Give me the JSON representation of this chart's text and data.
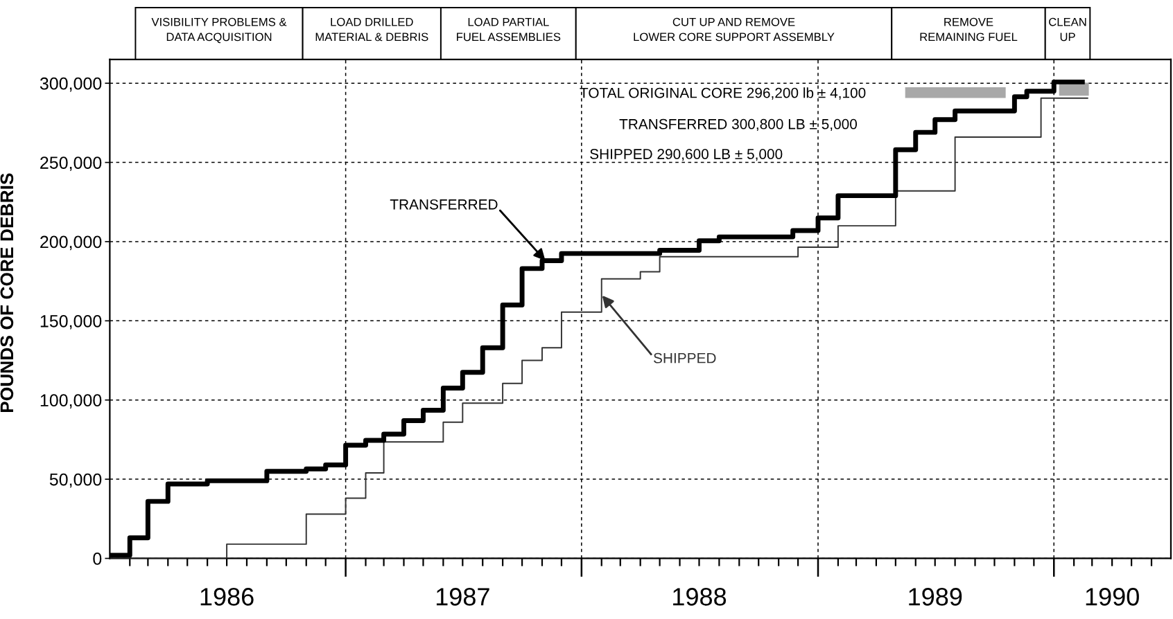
{
  "chart_data": {
    "type": "step",
    "ylabel": "POUNDS OF CORE DEBRIS",
    "series": [
      {
        "name": "TRANSFERRED",
        "color": "#000000",
        "x": [
          "1986-01",
          "1986-02",
          "1986-03",
          "1986-04",
          "1986-06",
          "1986-09",
          "1986-11",
          "1986-12",
          "1987-01",
          "1987-02",
          "1987-03",
          "1987-04",
          "1987-05",
          "1987-06",
          "1987-07",
          "1987-08",
          "1987-09",
          "1987-10",
          "1987-11",
          "1987-12",
          "1988-05",
          "1988-07",
          "1988-08",
          "1988-11-23",
          "1989-01",
          "1989-02",
          "1989-05",
          "1989-06",
          "1989-07",
          "1989-08",
          "1989-11",
          "1989-11-20",
          "1990-01",
          "1990-02-14"
        ],
        "values": [
          2000,
          13000,
          36000,
          47000,
          49000,
          55000,
          56500,
          59000,
          71500,
          74500,
          78500,
          87000,
          93500,
          107500,
          117500,
          133000,
          160000,
          183000,
          188000,
          192500,
          194500,
          200500,
          203000,
          207000,
          215000,
          229000,
          258000,
          269000,
          277000,
          282500,
          291500,
          295000,
          300800,
          300800
        ]
      },
      {
        "name": "SHIPPED",
        "color": "#333333",
        "x": [
          "1986-01",
          "1986-07",
          "1986-11",
          "1987-01",
          "1987-02",
          "1987-03",
          "1987-06",
          "1987-07",
          "1987-09",
          "1987-10",
          "1987-11",
          "1987-12",
          "1988-02",
          "1988-04",
          "1988-05",
          "1988-12",
          "1989-02",
          "1989-05",
          "1989-08",
          "1989-12-12",
          "1990-02-22"
        ],
        "values": [
          0,
          9000,
          28000,
          38000,
          54000,
          73500,
          86000,
          98000,
          110500,
          125000,
          133000,
          155500,
          176500,
          181000,
          190500,
          196500,
          210000,
          232000,
          266000,
          290600,
          290600
        ]
      },
      {
        "type": "bar",
        "color": "#a8a8a8",
        "x": [
          "1990-02-01"
        ],
        "base": [
          292100
        ],
        "values": [
          8200
        ]
      }
    ],
    "annotations": [
      "VISIBILITY PROBLEMS &\nDATA ACQUISITION",
      "LOAD DRILLED\nMATERIAL & DEBRIS",
      "LOAD PARTIAL\nFUEL ASSEMBLIES",
      "CUT UP AND REMOVE\nLOWER CORE SUPPORT ASSEMBLY",
      "REMOVE\nREMAINING FUEL",
      "CLEAN\nUP",
      "TOTAL ORIGINAL CORE 296,200 lb ± 4,100",
      "TRANSFERRED 300,800 LB ± 5,000",
      "SHIPPED 290,600 LB ± 5,000"
    ],
    "ref_lines": [
      {
        "axis": "x",
        "value": "1987-01",
        "line_style": "dashed",
        "color": "#000000"
      },
      {
        "axis": "x",
        "value": "1988-01",
        "line_style": "dashed",
        "color": "#000000"
      },
      {
        "axis": "x",
        "value": "1989-01",
        "line_style": "dashed",
        "color": "#000000"
      },
      {
        "axis": "x",
        "value": "1990-01",
        "line_style": "dashed",
        "color": "#000000"
      }
    ],
    "xlim": [
      "1986-01",
      "1990-07"
    ],
    "xticks": [
      {
        "value": "1986-02",
        "label": null
      },
      {
        "value": "1986-03",
        "label": null
      },
      {
        "value": "1986-04",
        "label": null
      },
      {
        "value": "1986-05",
        "label": null
      },
      {
        "value": "1986-06",
        "label": null
      },
      {
        "value": "1986-07",
        "label": "1986"
      },
      {
        "value": "1986-08",
        "label": null
      },
      {
        "value": "1986-09",
        "label": null
      },
      {
        "value": "1986-10",
        "label": null
      },
      {
        "value": "1986-11",
        "label": null
      },
      {
        "value": "1986-12",
        "label": null
      },
      {
        "value": "1987-01",
        "label": null
      },
      {
        "value": "1987-02",
        "label": null
      },
      {
        "value": "1987-03",
        "label": null
      },
      {
        "value": "1987-04",
        "label": null
      },
      {
        "value": "1987-05",
        "label": null
      },
      {
        "value": "1987-06",
        "label": null
      },
      {
        "value": "1987-07",
        "label": "1987"
      },
      {
        "value": "1987-08",
        "label": null
      },
      {
        "value": "1987-09",
        "label": null
      },
      {
        "value": "1987-10",
        "label": null
      },
      {
        "value": "1987-11",
        "label": null
      },
      {
        "value": "1987-12",
        "label": null
      },
      {
        "value": "1988-01",
        "label": null
      },
      {
        "value": "1988-02",
        "label": null
      },
      {
        "value": "1988-03",
        "label": null
      },
      {
        "value": "1988-04",
        "label": null
      },
      {
        "value": "1988-05",
        "label": null
      },
      {
        "value": "1988-06",
        "label": null
      },
      {
        "value": "1988-07",
        "label": "1988"
      },
      {
        "value": "1988-08",
        "label": null
      },
      {
        "value": "1988-09",
        "label": null
      },
      {
        "value": "1988-10",
        "label": null
      },
      {
        "value": "1988-11",
        "label": null
      },
      {
        "value": "1988-12",
        "label": null
      },
      {
        "value": "1989-01",
        "label": null
      },
      {
        "value": "1989-02",
        "label": null
      },
      {
        "value": "1989-03",
        "label": null
      },
      {
        "value": "1989-04",
        "label": null
      },
      {
        "value": "1989-05",
        "label": null
      },
      {
        "value": "1989-06",
        "label": null
      },
      {
        "value": "1989-07",
        "label": "1989"
      },
      {
        "value": "1989-08",
        "label": null
      },
      {
        "value": "1989-09",
        "label": null
      },
      {
        "value": "1989-10",
        "label": null
      },
      {
        "value": "1989-11",
        "label": null
      },
      {
        "value": "1989-12",
        "label": null
      },
      {
        "value": "1990-01",
        "label": null
      },
      {
        "value": "1990-02",
        "label": null
      },
      {
        "value": "1990-03",
        "label": null
      },
      {
        "value": "1990-04",
        "label": "1990"
      },
      {
        "value": "1990-05",
        "label": null
      },
      {
        "value": "1990-06",
        "label": null
      }
    ],
    "ylim": [
      0,
      315000
    ],
    "yticks": [
      0,
      {
        "value": 50000,
        "label": "50,000"
      },
      {
        "value": 100000,
        "label": "100,000"
      },
      {
        "value": 150000,
        "label": "150,000"
      },
      {
        "value": 200000,
        "label": "200,000"
      },
      {
        "value": 250000,
        "label": "250,000"
      },
      {
        "value": 300000,
        "label": "300,000"
      }
    ],
    "grid": "y"
  }
}
